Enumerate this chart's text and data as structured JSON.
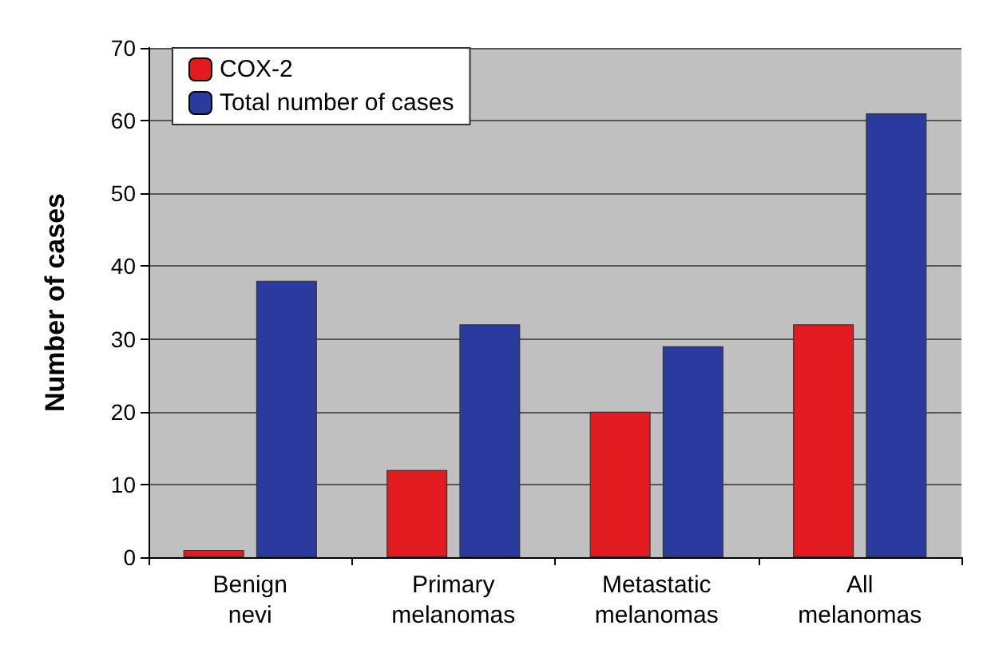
{
  "chart_data": {
    "type": "bar",
    "ylabel": "Number of cases",
    "categories": [
      "Benign nevi",
      "Primary melanomas",
      "Metastatic melanomas",
      "All melanomas"
    ],
    "series": [
      {
        "name": "COX-2",
        "color": "#e11b1f",
        "values": [
          1,
          12,
          20,
          32
        ]
      },
      {
        "name": "Total number of cases",
        "color": "#2b3a9e",
        "values": [
          38,
          32,
          29,
          61
        ]
      }
    ],
    "ylim": [
      0,
      70
    ],
    "yticks": [
      0,
      10,
      20,
      30,
      40,
      50,
      60,
      70
    ],
    "grid": "y",
    "legend": "top left"
  }
}
